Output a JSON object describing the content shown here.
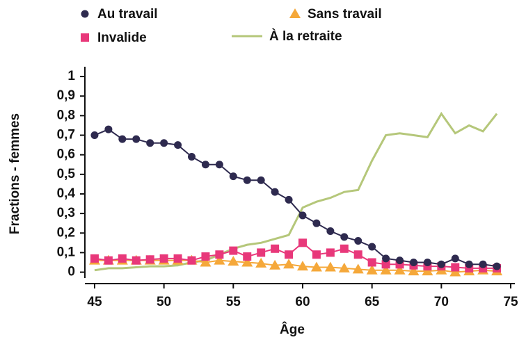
{
  "chart_data": {
    "type": "line",
    "x_label": "Âge",
    "y_label": "Fractions - femmes",
    "x": [
      45,
      46,
      47,
      48,
      49,
      50,
      51,
      52,
      53,
      54,
      55,
      56,
      57,
      58,
      59,
      60,
      61,
      62,
      63,
      64,
      65,
      66,
      67,
      68,
      69,
      70,
      71,
      72,
      73,
      74
    ],
    "series": [
      {
        "name": "Au travail",
        "color": "#2e2a4f",
        "marker": "circle",
        "values": [
          0.7,
          0.73,
          0.68,
          0.68,
          0.66,
          0.66,
          0.65,
          0.59,
          0.55,
          0.55,
          0.49,
          0.47,
          0.47,
          0.41,
          0.37,
          0.29,
          0.25,
          0.21,
          0.18,
          0.16,
          0.13,
          0.07,
          0.06,
          0.05,
          0.05,
          0.04,
          0.07,
          0.04,
          0.04,
          0.03
        ]
      },
      {
        "name": "Invalide",
        "color": "#e8387a",
        "marker": "square",
        "values": [
          0.07,
          0.06,
          0.07,
          0.06,
          0.065,
          0.07,
          0.07,
          0.06,
          0.08,
          0.09,
          0.11,
          0.08,
          0.1,
          0.12,
          0.09,
          0.15,
          0.09,
          0.1,
          0.12,
          0.09,
          0.05,
          0.04,
          0.04,
          0.035,
          0.03,
          0.03,
          0.025,
          0.02,
          0.02,
          0.02
        ]
      },
      {
        "name": "Sans travail",
        "color": "#f5a83a",
        "marker": "triangle",
        "values": [
          0.06,
          0.06,
          0.06,
          0.06,
          0.06,
          0.06,
          0.06,
          0.06,
          0.05,
          0.06,
          0.055,
          0.05,
          0.045,
          0.035,
          0.04,
          0.03,
          0.025,
          0.025,
          0.02,
          0.015,
          0.01,
          0.01,
          0.01,
          0.005,
          0.005,
          0.01,
          0,
          0.005,
          0.01,
          0.005
        ]
      },
      {
        "name": "À la retraite",
        "color": "#b5c77a",
        "marker": "none",
        "values": [
          0.01,
          0.02,
          0.02,
          0.025,
          0.03,
          0.03,
          0.035,
          0.05,
          0.06,
          0.09,
          0.12,
          0.14,
          0.15,
          0.17,
          0.19,
          0.33,
          0.36,
          0.38,
          0.41,
          0.42,
          0.57,
          0.7,
          0.71,
          0.7,
          0.69,
          0.81,
          0.71,
          0.75,
          0.72,
          0.81
        ]
      }
    ],
    "xlim": [
      44.3,
      75.3
    ],
    "xticks": [
      45,
      50,
      55,
      60,
      65,
      70,
      75
    ],
    "ylim": [
      -0.03,
      1.05
    ],
    "yticks": [
      0,
      {
        "value": 0.1,
        "label": "0,1"
      },
      {
        "value": 0.2,
        "label": "0,2"
      },
      {
        "value": 0.3,
        "label": "0,3"
      },
      {
        "value": 0.4,
        "label": "0,4"
      },
      {
        "value": 0.5,
        "label": "0,5"
      },
      {
        "value": 0.6,
        "label": "0,6"
      },
      {
        "value": 0.7,
        "label": "0,7"
      },
      {
        "value": 0.8,
        "label": "0,8"
      },
      {
        "value": 0.9,
        "label": "0,9"
      },
      1
    ],
    "legend": "top"
  }
}
